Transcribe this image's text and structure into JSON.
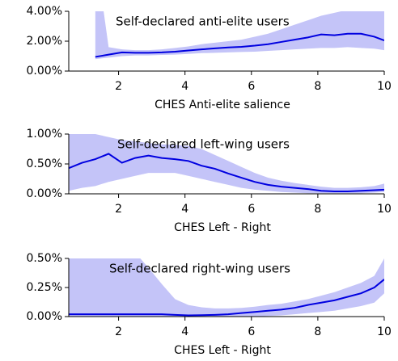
{
  "chart_data": [
    {
      "type": "line",
      "annotation": "Self-declared anti-elite users",
      "xlabel": "CHES Anti-elite salience",
      "x": [
        0.5,
        0.9,
        1.3,
        1.7,
        2.1,
        2.5,
        2.9,
        3.3,
        3.7,
        4.1,
        4.5,
        4.9,
        5.3,
        5.7,
        6.1,
        6.5,
        6.9,
        7.3,
        7.7,
        8.1,
        8.5,
        8.9,
        9.3,
        9.7,
        10
      ],
      "xlim": [
        0.5,
        10
      ],
      "xticks": [
        2,
        4,
        6,
        8,
        10
      ],
      "ylim": [
        0,
        4
      ],
      "yticks": [
        {
          "value": 0,
          "label": "0.00%"
        },
        {
          "value": 2,
          "label": "2.00%"
        },
        {
          "value": 4,
          "label": "4.00%"
        }
      ],
      "series": [
        {
          "color": "#0000e0",
          "band_color": "#c4c4f8",
          "values": [
            null,
            null,
            0.95,
            1.1,
            1.25,
            1.22,
            1.22,
            1.25,
            1.3,
            1.38,
            1.45,
            1.52,
            1.58,
            1.62,
            1.7,
            1.8,
            1.95,
            2.1,
            2.25,
            2.45,
            2.4,
            2.5,
            2.5,
            2.3,
            2.05
          ],
          "upper": [
            null,
            null,
            8,
            1.6,
            1.45,
            1.4,
            1.4,
            1.45,
            1.55,
            1.65,
            1.8,
            1.9,
            2.0,
            2.1,
            2.3,
            2.5,
            2.8,
            3.1,
            3.4,
            3.7,
            3.9,
            4.1,
            4.3,
            4.6,
            4.8
          ],
          "lower": [
            null,
            null,
            0.8,
            0.9,
            1.0,
            1.05,
            1.05,
            1.08,
            1.1,
            1.15,
            1.2,
            1.22,
            1.25,
            1.28,
            1.3,
            1.35,
            1.4,
            1.45,
            1.5,
            1.55,
            1.55,
            1.6,
            1.55,
            1.5,
            1.4
          ]
        }
      ]
    },
    {
      "type": "line",
      "annotation": "Self-declared left-wing users",
      "xlabel": "CHES Left - Right",
      "x": [
        0.5,
        0.9,
        1.3,
        1.7,
        2.1,
        2.5,
        2.9,
        3.3,
        3.7,
        4.1,
        4.5,
        4.9,
        5.3,
        5.7,
        6.1,
        6.5,
        6.9,
        7.3,
        7.7,
        8.1,
        8.5,
        8.9,
        9.3,
        9.7,
        10
      ],
      "xlim": [
        0.5,
        10
      ],
      "xticks": [
        2,
        4,
        6,
        8,
        10
      ],
      "ylim": [
        0,
        1
      ],
      "yticks": [
        {
          "value": 0,
          "label": "0.00%"
        },
        {
          "value": 0.5,
          "label": "0.50%"
        },
        {
          "value": 1,
          "label": "1.00%"
        }
      ],
      "series": [
        {
          "color": "#0000e0",
          "band_color": "#c4c4f8",
          "values": [
            0.43,
            0.52,
            0.58,
            0.67,
            0.52,
            0.6,
            0.64,
            0.6,
            0.58,
            0.55,
            0.47,
            0.42,
            0.34,
            0.27,
            0.2,
            0.15,
            0.12,
            0.1,
            0.08,
            0.05,
            0.04,
            0.04,
            0.05,
            0.06,
            0.07
          ],
          "upper": [
            1.1,
            1.05,
            1.0,
            0.95,
            0.9,
            0.88,
            0.85,
            0.83,
            0.82,
            0.8,
            0.75,
            0.65,
            0.55,
            0.45,
            0.35,
            0.27,
            0.22,
            0.18,
            0.15,
            0.12,
            0.1,
            0.1,
            0.11,
            0.13,
            0.17
          ],
          "lower": [
            0.05,
            0.1,
            0.13,
            0.2,
            0.25,
            0.3,
            0.35,
            0.35,
            0.35,
            0.3,
            0.25,
            0.2,
            0.15,
            0.1,
            0.07,
            0.05,
            0.03,
            0.02,
            0.01,
            0.01,
            0.01,
            0.01,
            0.01,
            0.02,
            0.03
          ]
        }
      ]
    },
    {
      "type": "line",
      "annotation": "Self-declared  right-wing users",
      "xlabel": "CHES Left - Right",
      "x": [
        0.5,
        0.9,
        1.3,
        1.7,
        2.1,
        2.5,
        2.9,
        3.3,
        3.7,
        4.1,
        4.5,
        4.9,
        5.3,
        5.7,
        6.1,
        6.5,
        6.9,
        7.3,
        7.7,
        8.1,
        8.5,
        8.9,
        9.3,
        9.7,
        10
      ],
      "xlim": [
        0.5,
        10
      ],
      "xticks": [
        2,
        4,
        6,
        8,
        10
      ],
      "ylim": [
        0,
        0.5
      ],
      "yticks": [
        {
          "value": 0,
          "label": "0.00%"
        },
        {
          "value": 0.25,
          "label": "0.25%"
        },
        {
          "value": 0.5,
          "label": "0.50%"
        }
      ],
      "series": [
        {
          "color": "#0000e0",
          "band_color": "#c4c4f8",
          "values": [
            0.02,
            0.02,
            0.02,
            0.02,
            0.02,
            0.02,
            0.02,
            0.02,
            0.015,
            0.01,
            0.012,
            0.015,
            0.02,
            0.03,
            0.04,
            0.05,
            0.06,
            0.075,
            0.1,
            0.12,
            0.14,
            0.17,
            0.2,
            0.25,
            0.32
          ],
          "upper": [
            0.6,
            0.6,
            0.6,
            0.6,
            0.6,
            0.55,
            0.42,
            0.28,
            0.15,
            0.1,
            0.08,
            0.07,
            0.07,
            0.075,
            0.085,
            0.1,
            0.11,
            0.13,
            0.15,
            0.18,
            0.21,
            0.25,
            0.29,
            0.35,
            0.5
          ],
          "lower": [
            0,
            0,
            0,
            0,
            0,
            0,
            0,
            0,
            0,
            0,
            0,
            0,
            0,
            0,
            0,
            0.005,
            0.01,
            0.02,
            0.03,
            0.04,
            0.05,
            0.07,
            0.09,
            0.12,
            0.2
          ]
        }
      ]
    }
  ]
}
